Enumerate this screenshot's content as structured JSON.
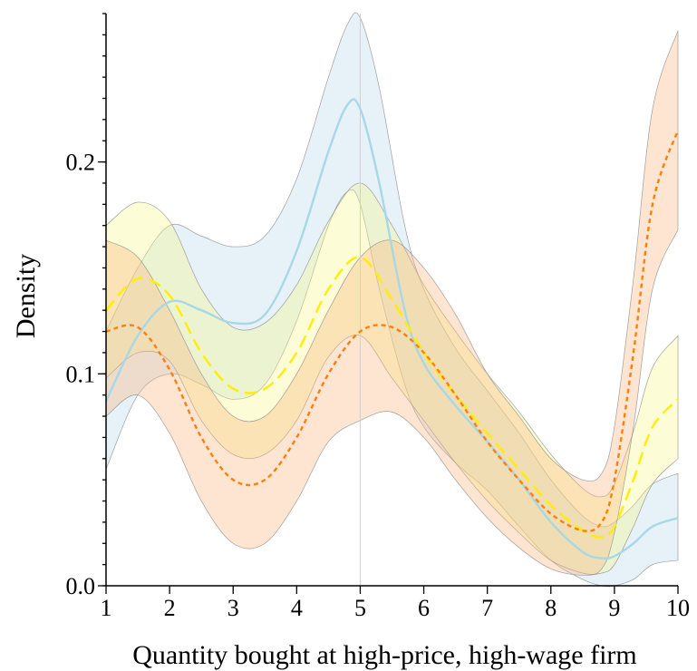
{
  "chart_data": {
    "type": "line",
    "title": "",
    "xlabel": "Quantity bought at high-price, high-wage firm",
    "ylabel": "Density",
    "xlim": [
      1,
      10
    ],
    "ylim": [
      0,
      0.27
    ],
    "x_ticks": [
      1,
      2,
      3,
      4,
      5,
      6,
      7,
      8,
      9,
      10
    ],
    "x_tick_labels": [
      "1",
      "2",
      "3",
      "4",
      "5",
      "6",
      "7",
      "8",
      "9",
      "10"
    ],
    "y_ticks": [
      0,
      0.1,
      0.2
    ],
    "y_tick_labels": [
      "0.0",
      "0.1",
      "0.2"
    ],
    "y_minor_step": 0.01,
    "reference_line_x": 5,
    "grid": false,
    "legend": "none",
    "series": [
      {
        "color": "#a8d8e6",
        "band_color": "#b9d8ec",
        "line_style": "solid",
        "x": [
          1,
          1.5,
          2,
          2.5,
          3,
          3.5,
          4,
          4.5,
          4.8,
          5,
          5.3,
          5.7,
          6,
          6.5,
          7,
          7.5,
          8,
          8.5,
          8.8,
          9,
          9.3,
          9.6,
          10
        ],
        "y": [
          0.087,
          0.118,
          0.134,
          0.13,
          0.124,
          0.128,
          0.158,
          0.205,
          0.227,
          0.225,
          0.19,
          0.13,
          0.105,
          0.085,
          0.068,
          0.05,
          0.03,
          0.016,
          0.013,
          0.014,
          0.02,
          0.028,
          0.032
        ],
        "lower": [
          0.055,
          0.09,
          0.1,
          0.095,
          0.088,
          0.095,
          0.125,
          0.17,
          0.186,
          0.18,
          0.14,
          0.095,
          0.075,
          0.058,
          0.045,
          0.028,
          0.012,
          0.003,
          0.0,
          0.0,
          0.003,
          0.01,
          0.012
        ],
        "upper": [
          0.12,
          0.15,
          0.17,
          0.165,
          0.16,
          0.165,
          0.192,
          0.24,
          0.265,
          0.268,
          0.235,
          0.17,
          0.14,
          0.112,
          0.092,
          0.072,
          0.05,
          0.033,
          0.028,
          0.03,
          0.038,
          0.048,
          0.053
        ]
      },
      {
        "color": "#ffee00",
        "band_color": "#f7f78a",
        "line_style": "long-dash",
        "x": [
          1,
          1.5,
          2,
          2.5,
          3,
          3.5,
          4,
          4.5,
          5,
          5.5,
          6,
          6.5,
          7,
          7.5,
          8,
          8.5,
          8.8,
          9,
          9.3,
          9.6,
          10
        ],
        "y": [
          0.13,
          0.145,
          0.137,
          0.11,
          0.093,
          0.093,
          0.11,
          0.14,
          0.155,
          0.135,
          0.11,
          0.09,
          0.072,
          0.055,
          0.038,
          0.026,
          0.023,
          0.028,
          0.05,
          0.075,
          0.088
        ],
        "lower": [
          0.098,
          0.11,
          0.106,
          0.078,
          0.062,
          0.062,
          0.078,
          0.108,
          0.118,
          0.098,
          0.078,
          0.058,
          0.04,
          0.025,
          0.012,
          0.006,
          0.006,
          0.01,
          0.028,
          0.048,
          0.06
        ],
        "upper": [
          0.17,
          0.181,
          0.172,
          0.14,
          0.122,
          0.124,
          0.142,
          0.172,
          0.19,
          0.17,
          0.142,
          0.12,
          0.1,
          0.082,
          0.062,
          0.046,
          0.042,
          0.048,
          0.073,
          0.103,
          0.118
        ]
      },
      {
        "color": "#ff7f0e",
        "band_color": "#f9b47c",
        "line_style": "short-dash",
        "x": [
          1,
          1.5,
          2,
          2.5,
          3,
          3.5,
          4,
          4.5,
          5,
          5.5,
          6,
          6.5,
          7,
          7.5,
          8,
          8.5,
          8.8,
          9,
          9.3,
          9.6,
          10
        ],
        "y": [
          0.12,
          0.122,
          0.102,
          0.07,
          0.05,
          0.05,
          0.07,
          0.1,
          0.12,
          0.122,
          0.11,
          0.09,
          0.068,
          0.05,
          0.034,
          0.026,
          0.03,
          0.05,
          0.11,
          0.18,
          0.215
        ],
        "lower": [
          0.08,
          0.09,
          0.072,
          0.04,
          0.02,
          0.02,
          0.04,
          0.068,
          0.078,
          0.082,
          0.07,
          0.05,
          0.032,
          0.018,
          0.008,
          0.005,
          0.008,
          0.025,
          0.075,
          0.14,
          0.168
        ],
        "upper": [
          0.163,
          0.155,
          0.13,
          0.1,
          0.08,
          0.08,
          0.1,
          0.13,
          0.155,
          0.163,
          0.15,
          0.128,
          0.1,
          0.08,
          0.06,
          0.05,
          0.053,
          0.075,
          0.145,
          0.225,
          0.262
        ]
      }
    ]
  }
}
